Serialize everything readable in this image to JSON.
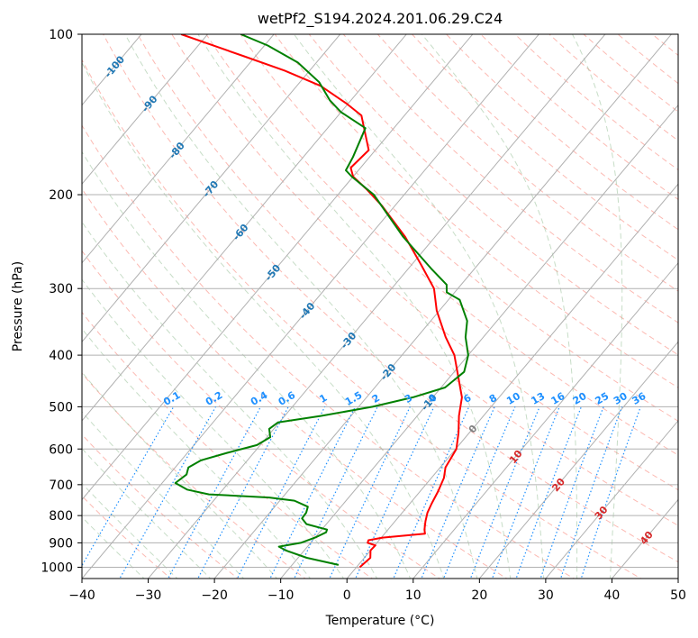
{
  "chart_data": {
    "type": "skew-t",
    "title": "wetPf2_S194.2024.201.06.29.C24",
    "xlabel": "Temperature (°C)",
    "ylabel": "Pressure (hPa)",
    "xlim": [
      -40,
      50
    ],
    "ylim": [
      1050,
      100
    ],
    "x_ticks": [
      -40,
      -30,
      -20,
      -10,
      0,
      10,
      20,
      30,
      40,
      50
    ],
    "y_ticks": [
      100,
      200,
      300,
      400,
      500,
      600,
      700,
      800,
      900,
      1000
    ],
    "grid": true,
    "colors": {
      "temperature": "#ff0000",
      "dewpoint": "#008000",
      "dry_adiabat": "#fa8072",
      "moist_adiabat": "#8fbc8f",
      "mixing_ratio": "#1e90ff",
      "isotherm_label": "#d62728",
      "isotherm_label_cold": "#1f77b4",
      "isotherm_zero": "#808080"
    },
    "series": [
      {
        "name": "Temperature",
        "points": [
          [
            1000,
            0.5
          ],
          [
            960,
            0.9
          ],
          [
            930,
            0
          ],
          [
            910,
            0.1
          ],
          [
            900,
            -1.4
          ],
          [
            890,
            -1.6
          ],
          [
            880,
            0.2
          ],
          [
            865,
            6.1
          ],
          [
            850,
            5.5
          ],
          [
            820,
            4.6
          ],
          [
            790,
            3.8
          ],
          [
            760,
            3.3
          ],
          [
            720,
            2.7
          ],
          [
            680,
            1.9
          ],
          [
            650,
            0.8
          ],
          [
            600,
            0.1
          ],
          [
            560,
            -1.6
          ],
          [
            520,
            -3.7
          ],
          [
            480,
            -5.6
          ],
          [
            440,
            -8.7
          ],
          [
            400,
            -12.1
          ],
          [
            370,
            -15.7
          ],
          [
            330,
            -20.4
          ],
          [
            300,
            -23.6
          ],
          [
            270,
            -28.7
          ],
          [
            240,
            -34.5
          ],
          [
            210,
            -41.9
          ],
          [
            195,
            -46.5
          ],
          [
            185,
            -50
          ],
          [
            178,
            -51.5
          ],
          [
            165,
            -51
          ],
          [
            150,
            -54.5
          ],
          [
            142,
            -56.5
          ],
          [
            135,
            -60.2
          ],
          [
            125,
            -66.4
          ],
          [
            117,
            -73.8
          ],
          [
            110,
            -81.7
          ],
          [
            100,
            -94
          ]
        ]
      },
      {
        "name": "Dewpoint",
        "points": [
          [
            990,
            -3
          ],
          [
            960,
            -8.7
          ],
          [
            930,
            -12.8
          ],
          [
            915,
            -14.3
          ],
          [
            900,
            -11.5
          ],
          [
            880,
            -10
          ],
          [
            860,
            -9
          ],
          [
            850,
            -9.2
          ],
          [
            830,
            -13
          ],
          [
            810,
            -14.4
          ],
          [
            790,
            -14.5
          ],
          [
            770,
            -15
          ],
          [
            750,
            -17.8
          ],
          [
            740,
            -22
          ],
          [
            730,
            -31.5
          ],
          [
            715,
            -35.4
          ],
          [
            695,
            -38
          ],
          [
            670,
            -37.4
          ],
          [
            650,
            -38
          ],
          [
            630,
            -37
          ],
          [
            610,
            -34
          ],
          [
            590,
            -30.5
          ],
          [
            570,
            -29.5
          ],
          [
            550,
            -30.7
          ],
          [
            535,
            -30.2
          ],
          [
            520,
            -24.5
          ],
          [
            500,
            -17.9
          ],
          [
            480,
            -13
          ],
          [
            460,
            -9.4
          ],
          [
            430,
            -8.5
          ],
          [
            400,
            -10
          ],
          [
            370,
            -12.7
          ],
          [
            345,
            -14.5
          ],
          [
            315,
            -18.3
          ],
          [
            305,
            -21.2
          ],
          [
            295,
            -22.2
          ],
          [
            275,
            -26.6
          ],
          [
            240,
            -34.8
          ],
          [
            200,
            -44.6
          ],
          [
            185,
            -50.2
          ],
          [
            180,
            -51.9
          ],
          [
            170,
            -52.5
          ],
          [
            150,
            -54.3
          ],
          [
            140,
            -60
          ],
          [
            133,
            -63.2
          ],
          [
            123,
            -67.1
          ],
          [
            113,
            -72.8
          ],
          [
            105,
            -79.5
          ],
          [
            100,
            -85
          ]
        ]
      }
    ],
    "isotherm_labels": [
      "-100",
      "-90",
      "-80",
      "-70",
      "-60",
      "-50",
      "-40",
      "-30",
      "-20",
      "-10",
      "0",
      "10",
      "20",
      "30",
      "40"
    ],
    "mixing_ratio_labels": [
      "0.1",
      "0.2",
      "0.4",
      "0.6",
      "1",
      "1.5",
      "2",
      "3",
      "4",
      "6",
      "8",
      "10",
      "13",
      "16",
      "20",
      "25",
      "30",
      "36"
    ]
  }
}
